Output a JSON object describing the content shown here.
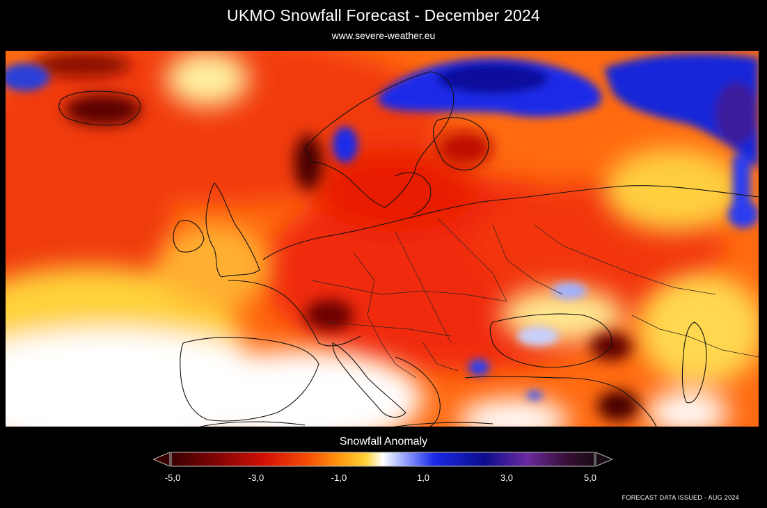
{
  "header": {
    "title": "UKMO Snowfall Forecast  -  December 2024",
    "subtitle": "www.severe-weather.eu"
  },
  "legend": {
    "title": "Snowfall Anomaly",
    "ticks": [
      "-5,0",
      "-3,0",
      "-1,0",
      "1,0",
      "3,0",
      "5,0"
    ],
    "colors": {
      "dark_red": "#3a0000",
      "red": "#e81a00",
      "orange": "#ff7a00",
      "yellow": "#ffd23a",
      "white": "#ffffff",
      "blue": "#1024e0",
      "navy": "#0c0c8c",
      "purple": "#6a2aa0",
      "black": "#1a0a14"
    }
  },
  "footer": {
    "note": "FORECAST DATA ISSUED - AUG 2024"
  }
}
